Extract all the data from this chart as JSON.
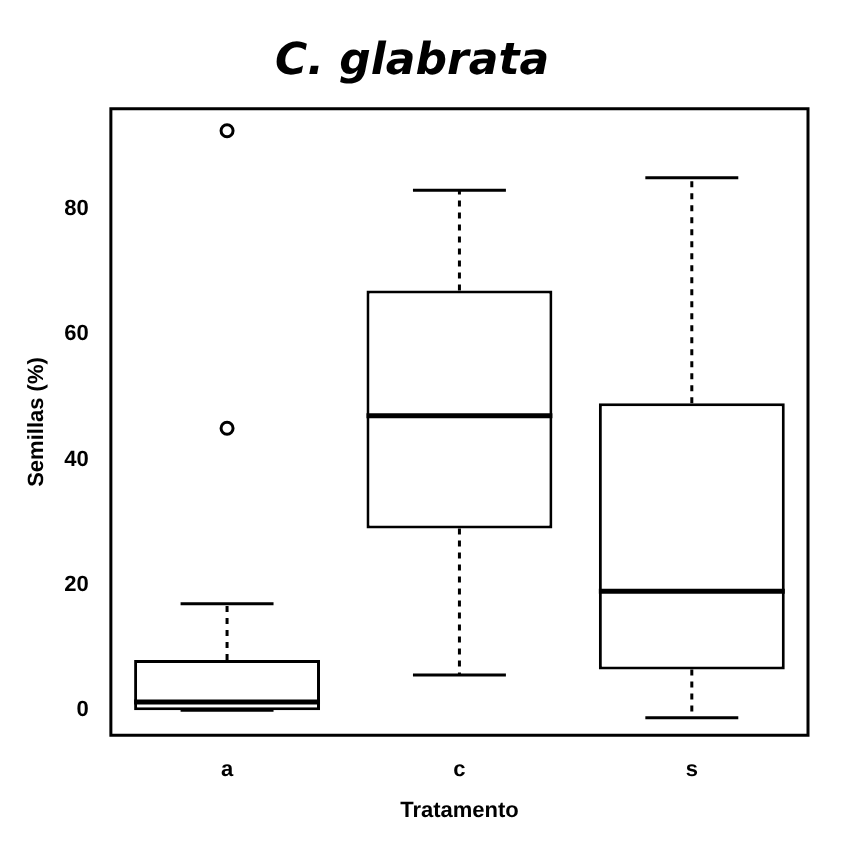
{
  "chart_data": {
    "type": "box",
    "title": "C. glabrata",
    "xlabel": "Tratamento",
    "ylabel": "Semillas (%)",
    "categories": [
      "a",
      "c",
      "s"
    ],
    "boxes": [
      {
        "low": 0,
        "q1": 0,
        "median": 1.3,
        "q3": 8,
        "high": 17,
        "outliers": [
          45,
          92.5
        ]
      },
      {
        "low": 5.6,
        "q1": 29,
        "median": 47,
        "q3": 67,
        "high": 83
      },
      {
        "low": -1.2,
        "q1": 6.5,
        "median": 19,
        "q3": 49,
        "high": 85
      }
    ],
    "ylim": [
      -4,
      96
    ],
    "yticks": [
      0,
      20,
      40,
      60,
      80
    ],
    "grid": false,
    "legend": false
  }
}
